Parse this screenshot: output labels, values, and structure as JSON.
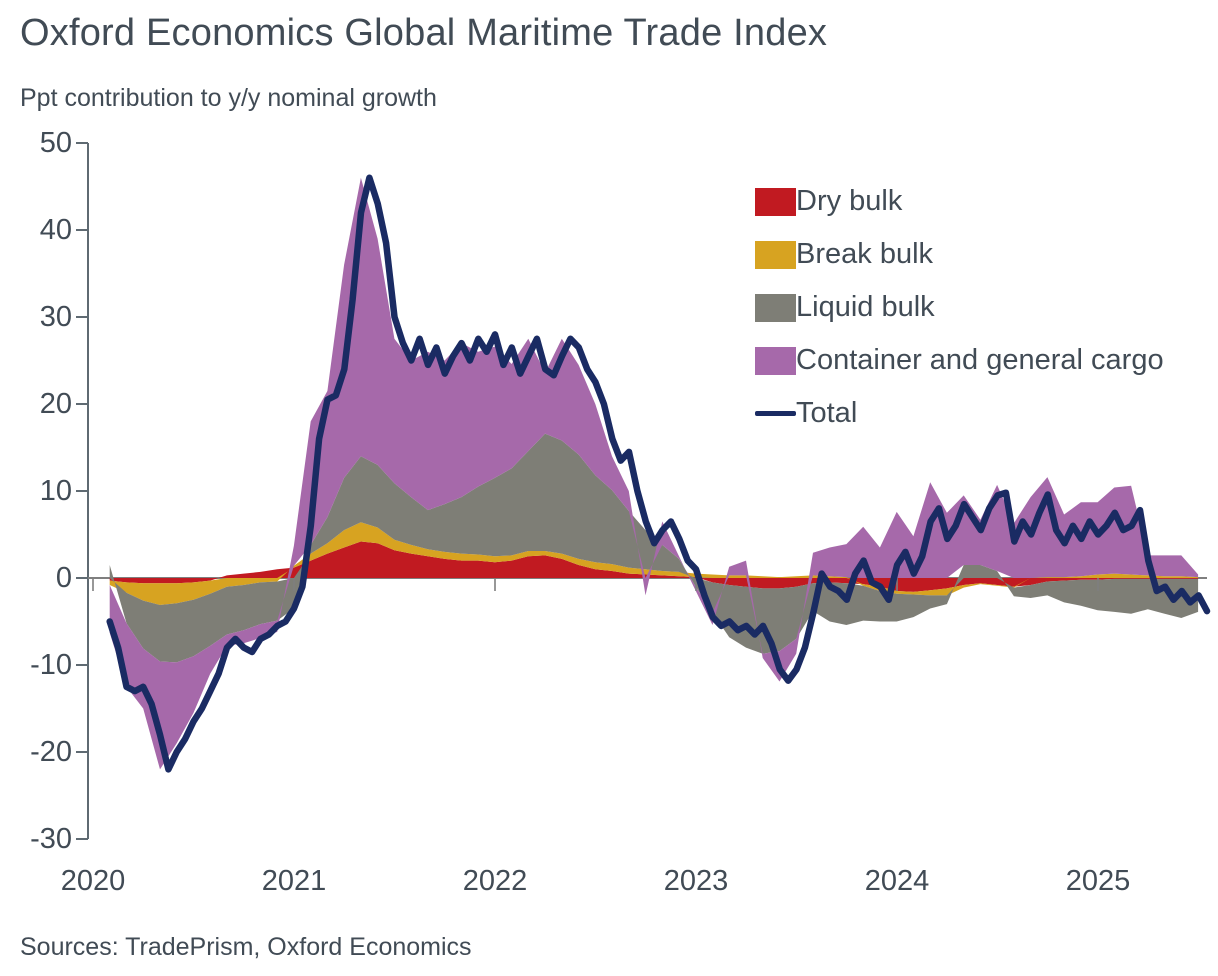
{
  "header": {
    "title": "Oxford Economics Global Maritime Trade Index",
    "subtitle": "Ppt contribution to y/y nominal growth"
  },
  "footer": {
    "sources": "Sources: TradePrism, Oxford Economics"
  },
  "colors": {
    "text": "#414b55",
    "axis": "#5f6a72",
    "zero_line": "#7f7f7f",
    "dry": "#c11a21",
    "break": "#d7a321",
    "liquid": "#7e7e76",
    "container": "#a669aa",
    "total": "#1a2b63"
  },
  "chart_data": {
    "type": "area",
    "title": "Oxford Economics Global Maritime Trade Index",
    "ylabel": "Ppt contribution to y/y nominal growth",
    "xlabel": "",
    "stacking": "signed-stacked areas with overlaid total line",
    "grid": "none (zero line only)",
    "legend_position": "top-right inside plot",
    "ylim": [
      -30,
      50
    ],
    "xlim": [
      2019.97,
      2025.56
    ],
    "y_ticks": [
      50,
      40,
      30,
      20,
      10,
      0,
      -10,
      -20,
      -30
    ],
    "x_ticks": [
      2020,
      2021,
      2022,
      2023,
      2024,
      2025
    ],
    "series_t0": 2020.0833,
    "series_dt": 0.0833,
    "series": [
      {
        "name": "Dry bulk",
        "key": "dry",
        "color": "#c11a21",
        "values": [
          -0.3,
          -0.5,
          -0.6,
          -0.6,
          -0.6,
          -0.5,
          -0.3,
          0.3,
          0.5,
          0.7,
          1.0,
          1.2,
          2.0,
          2.8,
          3.5,
          4.2,
          4.0,
          3.2,
          2.8,
          2.5,
          2.2,
          2.0,
          2.0,
          1.8,
          2.0,
          2.5,
          2.6,
          2.2,
          1.5,
          1.0,
          0.8,
          0.5,
          0.4,
          0.3,
          0.2,
          0.1,
          -0.5,
          -0.8,
          -1.0,
          -1.2,
          -1.2,
          -1.0,
          -0.6,
          -0.5,
          -0.6,
          -0.7,
          -1.0,
          -1.5,
          -1.6,
          -1.4,
          -1.2,
          -0.8,
          -0.6,
          -0.8,
          -1.0,
          -0.8,
          -0.4,
          -0.3,
          -0.2,
          -0.2,
          -0.1,
          -0.1,
          -0.1,
          -0.1,
          -0.1,
          -0.1
        ]
      },
      {
        "name": "Break bulk",
        "key": "break",
        "color": "#d7a321",
        "values": [
          -0.5,
          -1.2,
          -2.0,
          -2.5,
          -2.3,
          -2.0,
          -1.5,
          -1.0,
          -0.8,
          -0.5,
          -0.4,
          0.2,
          0.8,
          1.2,
          2.0,
          2.2,
          1.8,
          1.2,
          1.0,
          0.8,
          0.8,
          0.8,
          0.7,
          0.7,
          0.6,
          0.6,
          0.5,
          0.6,
          0.7,
          0.8,
          0.8,
          0.7,
          0.6,
          0.5,
          0.5,
          0.4,
          0.4,
          0.3,
          0.3,
          0.2,
          0.1,
          0.2,
          0.3,
          0.2,
          0.1,
          -0.2,
          -0.5,
          -0.3,
          -0.3,
          -0.6,
          -0.8,
          -0.3,
          -0.1,
          -0.1,
          -0.1,
          0.0,
          0.1,
          0.1,
          0.2,
          0.4,
          0.5,
          0.4,
          0.3,
          0.2,
          0.2,
          0.1
        ]
      },
      {
        "name": "Liquid bulk",
        "key": "liquid",
        "color": "#7e7e76",
        "values": [
          1.5,
          -3.5,
          -5.5,
          -6.5,
          -6.8,
          -6.5,
          -6.0,
          -5.5,
          -5.2,
          -4.8,
          -4.5,
          -3.5,
          1.0,
          3.0,
          6.0,
          7.6,
          7.2,
          6.5,
          5.5,
          4.5,
          5.5,
          6.5,
          7.8,
          9.0,
          10.0,
          11.5,
          13.5,
          13.0,
          12.0,
          10.0,
          8.5,
          6.5,
          4.5,
          3.0,
          1.5,
          -1.0,
          -3.5,
          -6.0,
          -7.0,
          -7.5,
          -7.2,
          -6.0,
          -3.2,
          -4.5,
          -4.8,
          -4.0,
          -3.5,
          -3.2,
          -2.6,
          -1.5,
          -1.0,
          1.5,
          1.5,
          0.8,
          -1.0,
          -1.5,
          -1.6,
          -2.5,
          -3.0,
          -3.5,
          -3.8,
          -4.0,
          -3.5,
          -4.0,
          -4.5,
          -3.8
        ]
      },
      {
        "name": "Container and general cargo",
        "key": "container",
        "color": "#a669aa",
        "values": [
          -5.5,
          -7.3,
          -6.9,
          -12.4,
          -9.3,
          -6.5,
          -3.2,
          -1.3,
          -1.5,
          -1.6,
          -1.3,
          2.3,
          14.2,
          14.5,
          24.5,
          32.0,
          26.0,
          16.6,
          15.7,
          18.2,
          16.5,
          17.7,
          15.5,
          15.1,
          12.0,
          12.9,
          7.0,
          11.7,
          10.3,
          8.2,
          3.9,
          2.3,
          -2.0,
          2.7,
          0.3,
          -0.5,
          -1.4,
          1.0,
          1.7,
          -0.5,
          -3.5,
          -1.7,
          2.6,
          3.3,
          3.8,
          5.9,
          3.5,
          7.6,
          4.8,
          11.0,
          7.5,
          8.0,
          5.2,
          9.9,
          6.3,
          9.3,
          11.5,
          7.2,
          8.5,
          8.3,
          9.9,
          10.2,
          2.3,
          2.4,
          2.4,
          0.3
        ]
      }
    ],
    "total": {
      "name": "Total",
      "color": "#1a2b63",
      "t0": 2020.0833,
      "dt": 0.04167,
      "values": [
        -5.0,
        -8.0,
        -12.5,
        -13.0,
        -12.5,
        -14.5,
        -18.0,
        -22.0,
        -20.0,
        -18.5,
        -16.5,
        -15.0,
        -13.0,
        -11.0,
        -8.0,
        -7.0,
        -8.0,
        -8.5,
        -7.0,
        -6.5,
        -5.5,
        -5.0,
        -3.5,
        -1.0,
        6.0,
        16.0,
        20.5,
        21.0,
        24.0,
        32.0,
        42.0,
        46.0,
        43.0,
        38.5,
        30.0,
        27.0,
        25.0,
        27.5,
        24.5,
        26.5,
        23.5,
        25.5,
        27.0,
        25.0,
        27.5,
        26.0,
        28.0,
        24.5,
        26.5,
        23.5,
        25.5,
        27.5,
        24.0,
        23.3,
        25.5,
        27.5,
        26.5,
        24.0,
        22.5,
        20.0,
        16.0,
        13.5,
        14.5,
        10.0,
        6.5,
        4.0,
        5.5,
        6.5,
        4.5,
        2.0,
        1.0,
        -2.0,
        -4.5,
        -5.5,
        -5.0,
        -6.0,
        -5.5,
        -6.5,
        -5.5,
        -7.5,
        -10.5,
        -11.8,
        -10.5,
        -8.0,
        -4.0,
        0.5,
        -1.0,
        -1.5,
        -2.5,
        0.5,
        2.0,
        -0.5,
        -1.0,
        -2.5,
        1.5,
        3.0,
        0.5,
        2.5,
        6.5,
        8.0,
        4.5,
        6.0,
        8.5,
        7.0,
        5.5,
        8.0,
        9.5,
        9.8,
        4.2,
        6.5,
        5.0,
        7.5,
        9.6,
        5.5,
        4.0,
        6.0,
        4.5,
        6.5,
        5.0,
        6.0,
        7.5,
        5.5,
        6.0,
        7.8,
        2.0,
        -1.5,
        -1.0,
        -2.5,
        -1.5,
        -2.8,
        -2.0,
        -3.8
      ]
    },
    "legend": [
      {
        "label": "Dry bulk",
        "color": "#c11a21",
        "swatch": "rect"
      },
      {
        "label": "Break bulk",
        "color": "#d7a321",
        "swatch": "rect"
      },
      {
        "label": "Liquid bulk",
        "color": "#7e7e76",
        "swatch": "rect"
      },
      {
        "label": "Container and general cargo",
        "color": "#a669aa",
        "swatch": "rect"
      },
      {
        "label": "Total",
        "color": "#1a2b63",
        "swatch": "line"
      }
    ]
  }
}
